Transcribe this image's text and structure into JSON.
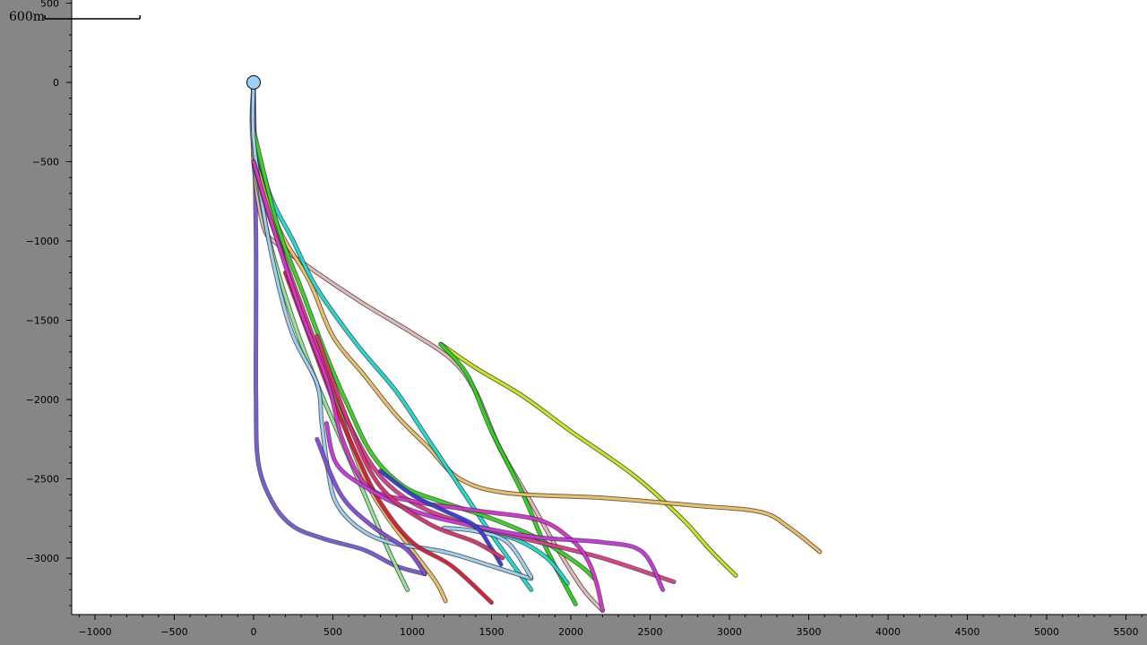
{
  "chart_data": {
    "type": "line",
    "title": "",
    "xlabel": "",
    "ylabel": "",
    "xlim": [
      -1150,
      5600
    ],
    "ylim": [
      -3350,
      500
    ],
    "x_ticks": [
      -1000,
      -500,
      0,
      500,
      1000,
      1500,
      2000,
      2500,
      3000,
      3500,
      4000,
      4500,
      5000,
      5500
    ],
    "y_ticks": [
      500,
      0,
      -500,
      -1000,
      -1500,
      -2000,
      -2500,
      -3000
    ],
    "grid": false,
    "legend": "none",
    "scale_bar": {
      "label": "600m",
      "length": 600
    },
    "wellhead": {
      "x": 0,
      "y": 0,
      "color": "#9ecff5"
    },
    "series": [
      {
        "color": "#7a5ae0",
        "points": [
          [
            0,
            0
          ],
          [
            8,
            -500
          ],
          [
            15,
            -1000
          ],
          [
            15,
            -1500
          ],
          [
            15,
            -2000
          ],
          [
            30,
            -2400
          ],
          [
            120,
            -2650
          ],
          [
            250,
            -2800
          ],
          [
            450,
            -2880
          ],
          [
            700,
            -2950
          ],
          [
            900,
            -3050
          ],
          [
            1080,
            -3100
          ]
        ]
      },
      {
        "color": "#e9b8b8",
        "points": [
          [
            0,
            0
          ],
          [
            0,
            -500
          ],
          [
            60,
            -900
          ],
          [
            150,
            -1020
          ],
          [
            400,
            -1200
          ],
          [
            700,
            -1400
          ],
          [
            1000,
            -1580
          ],
          [
            1250,
            -1750
          ],
          [
            1400,
            -1950
          ],
          [
            1550,
            -2300
          ],
          [
            1750,
            -2650
          ],
          [
            1920,
            -2950
          ],
          [
            2080,
            -3200
          ],
          [
            2200,
            -3330
          ]
        ]
      },
      {
        "color": "#c8ea10",
        "points": [
          [
            1180,
            -1650
          ],
          [
            1400,
            -1800
          ],
          [
            1700,
            -1980
          ],
          [
            2000,
            -2200
          ],
          [
            2400,
            -2480
          ],
          [
            2700,
            -2750
          ],
          [
            2880,
            -2950
          ],
          [
            3040,
            -3110
          ]
        ]
      },
      {
        "color": "#22dd10",
        "points": [
          [
            1180,
            -1650
          ],
          [
            1350,
            -1850
          ],
          [
            1500,
            -2200
          ],
          [
            1700,
            -2600
          ],
          [
            1850,
            -2950
          ],
          [
            2030,
            -3290
          ]
        ]
      },
      {
        "color": "#f0c060",
        "points": [
          [
            0,
            0
          ],
          [
            0,
            -400
          ],
          [
            150,
            -900
          ],
          [
            350,
            -1250
          ],
          [
            500,
            -1600
          ],
          [
            700,
            -1850
          ],
          [
            900,
            -2100
          ],
          [
            1100,
            -2300
          ],
          [
            1300,
            -2500
          ],
          [
            1600,
            -2590
          ],
          [
            2200,
            -2620
          ],
          [
            2800,
            -2670
          ],
          [
            3200,
            -2710
          ],
          [
            3380,
            -2810
          ],
          [
            3570,
            -2960
          ]
        ]
      },
      {
        "color": "#f0c060",
        "points": [
          [
            0,
            -450
          ],
          [
            100,
            -800
          ],
          [
            250,
            -1300
          ],
          [
            400,
            -1700
          ],
          [
            550,
            -2100
          ],
          [
            700,
            -2500
          ],
          [
            850,
            -2750
          ],
          [
            1000,
            -2950
          ],
          [
            1150,
            -3150
          ],
          [
            1210,
            -3270
          ]
        ]
      },
      {
        "color": "#17e0d8",
        "points": [
          [
            0,
            0
          ],
          [
            0,
            -300
          ],
          [
            100,
            -700
          ],
          [
            250,
            -1000
          ],
          [
            400,
            -1300
          ],
          [
            650,
            -1650
          ],
          [
            900,
            -1950
          ],
          [
            1100,
            -2250
          ],
          [
            1300,
            -2550
          ],
          [
            1500,
            -2850
          ],
          [
            1750,
            -3200
          ]
        ]
      },
      {
        "color": "#17e0d8",
        "points": [
          [
            1400,
            -2820
          ],
          [
            1650,
            -2880
          ],
          [
            1850,
            -3000
          ],
          [
            1980,
            -3160
          ]
        ]
      },
      {
        "color": "#34d81e",
        "points": [
          [
            0,
            -300
          ],
          [
            150,
            -900
          ],
          [
            300,
            -1300
          ],
          [
            450,
            -1700
          ],
          [
            600,
            -2050
          ],
          [
            750,
            -2350
          ],
          [
            950,
            -2550
          ],
          [
            1200,
            -2650
          ],
          [
            1500,
            -2750
          ],
          [
            1800,
            -2880
          ],
          [
            2050,
            -3040
          ],
          [
            2150,
            -3130
          ]
        ]
      },
      {
        "color": "#90e890",
        "points": [
          [
            0,
            -500
          ],
          [
            100,
            -1000
          ],
          [
            250,
            -1500
          ],
          [
            400,
            -1900
          ],
          [
            550,
            -2250
          ],
          [
            700,
            -2600
          ],
          [
            850,
            -2950
          ],
          [
            970,
            -3200
          ]
        ]
      },
      {
        "color": "#9ecff5",
        "points": [
          [
            0,
            0
          ],
          [
            0,
            -350
          ],
          [
            60,
            -800
          ],
          [
            150,
            -1250
          ],
          [
            250,
            -1600
          ],
          [
            400,
            -1900
          ],
          [
            430,
            -2150
          ],
          [
            470,
            -2450
          ],
          [
            520,
            -2650
          ],
          [
            650,
            -2800
          ],
          [
            850,
            -2900
          ],
          [
            1200,
            -2960
          ],
          [
            1500,
            -3050
          ],
          [
            1750,
            -3130
          ]
        ]
      },
      {
        "color": "#9ecff5",
        "points": [
          [
            1200,
            -2810
          ],
          [
            1400,
            -2830
          ],
          [
            1600,
            -2900
          ],
          [
            1750,
            -3120
          ]
        ]
      },
      {
        "color": "#e63a90",
        "points": [
          [
            0,
            -500
          ],
          [
            100,
            -850
          ],
          [
            300,
            -1400
          ],
          [
            450,
            -1800
          ],
          [
            600,
            -2150
          ],
          [
            750,
            -2420
          ],
          [
            900,
            -2580
          ],
          [
            1100,
            -2700
          ],
          [
            1400,
            -2800
          ],
          [
            1800,
            -2900
          ],
          [
            2200,
            -3000
          ],
          [
            2650,
            -3150
          ]
        ]
      },
      {
        "color": "#e31a3a",
        "points": [
          [
            200,
            -1200
          ],
          [
            350,
            -1600
          ],
          [
            500,
            -2000
          ],
          [
            650,
            -2350
          ],
          [
            800,
            -2650
          ],
          [
            1000,
            -2900
          ],
          [
            1250,
            -3050
          ],
          [
            1500,
            -3280
          ]
        ]
      },
      {
        "color": "#e12fd8",
        "points": [
          [
            0,
            -500
          ],
          [
            150,
            -1000
          ],
          [
            300,
            -1450
          ],
          [
            470,
            -1900
          ],
          [
            560,
            -2250
          ],
          [
            720,
            -2550
          ],
          [
            1000,
            -2640
          ],
          [
            1400,
            -2700
          ],
          [
            1800,
            -2760
          ],
          [
            2000,
            -2880
          ],
          [
            2100,
            -3000
          ],
          [
            2160,
            -3150
          ],
          [
            2200,
            -3330
          ]
        ]
      },
      {
        "color": "#d034e8",
        "points": [
          [
            460,
            -2150
          ],
          [
            520,
            -2400
          ],
          [
            700,
            -2550
          ],
          [
            1000,
            -2700
          ],
          [
            1400,
            -2800
          ],
          [
            1800,
            -2870
          ],
          [
            2200,
            -2900
          ],
          [
            2450,
            -2960
          ],
          [
            2580,
            -3200
          ]
        ]
      },
      {
        "color": "#3a3ae8",
        "points": [
          [
            800,
            -2450
          ],
          [
            1000,
            -2600
          ],
          [
            1200,
            -2700
          ],
          [
            1400,
            -2800
          ],
          [
            1500,
            -2940
          ],
          [
            1560,
            -3040
          ]
        ]
      },
      {
        "color": "#8a4ae8",
        "points": [
          [
            400,
            -2250
          ],
          [
            550,
            -2600
          ],
          [
            750,
            -2800
          ],
          [
            970,
            -2950
          ],
          [
            1080,
            -3100
          ]
        ]
      },
      {
        "color": "#e72e6e",
        "points": [
          [
            400,
            -1600
          ],
          [
            600,
            -2150
          ],
          [
            800,
            -2550
          ],
          [
            1100,
            -2780
          ],
          [
            1400,
            -2900
          ],
          [
            1570,
            -3000
          ]
        ]
      }
    ]
  }
}
